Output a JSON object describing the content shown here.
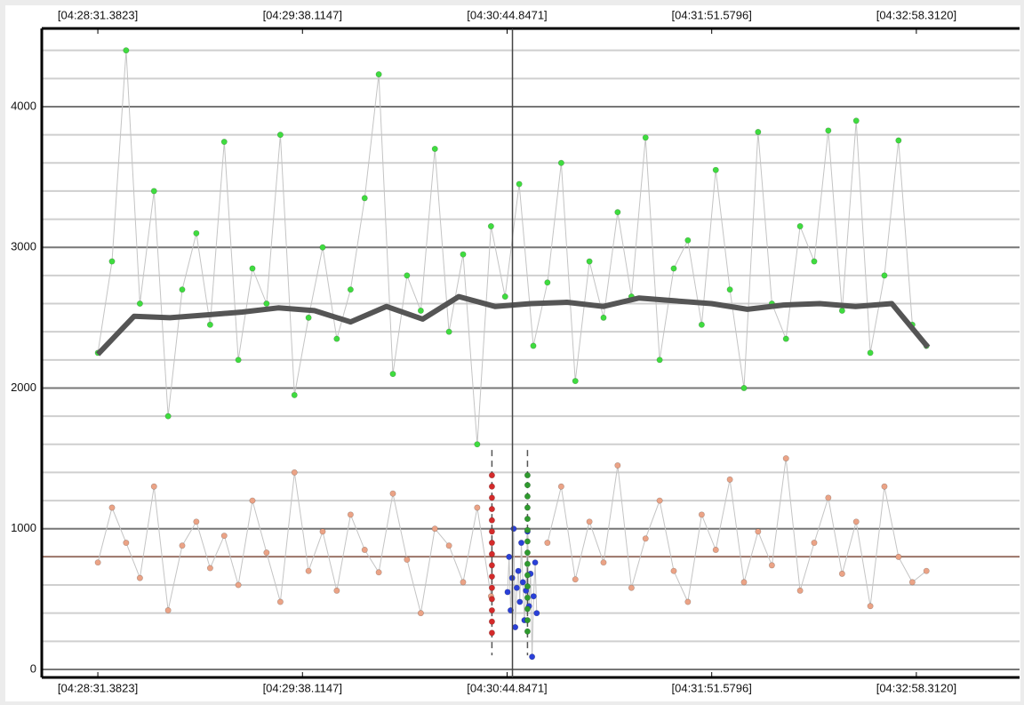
{
  "chart_data": {
    "type": "scatter",
    "xlim": [
      16093.1,
      16411.97
    ],
    "ylim": [
      -57,
      4556
    ],
    "xticks": [
      {
        "value": 16111.3823,
        "label": "[04:28:31.3823]"
      },
      {
        "value": 16178.1147,
        "label": "[04:29:38.1147]"
      },
      {
        "value": 16244.8471,
        "label": "[04:30:44.8471]"
      },
      {
        "value": 16311.5796,
        "label": "[04:31:51.5796]"
      },
      {
        "value": 16378.312,
        "label": "[04:32:58.3120]"
      }
    ],
    "yticks": [
      0,
      1000,
      2000,
      3000,
      4000
    ],
    "minor_yticks": [
      200,
      400,
      600,
      800,
      1200,
      1400,
      1600,
      1800,
      2200,
      2400,
      2600,
      2800,
      3200,
      3400,
      3600,
      3800,
      4200,
      4400
    ],
    "grid": true,
    "reference_line": 802,
    "cursor_x": 16246.6,
    "selection": {
      "start": 16239.9,
      "end": 16251.5
    },
    "series": [
      {
        "color": "#3fdc3f",
        "mode": "markers+line",
        "x": [
          16111.4,
          16116.0,
          16120.6,
          16125.1,
          16129.7,
          16134.3,
          16138.9,
          16143.5,
          16148.0,
          16152.6,
          16157.2,
          16161.8,
          16166.4,
          16170.9,
          16175.5,
          16180.1,
          16184.7,
          16189.3,
          16193.8,
          16198.4,
          16203.0,
          16207.6,
          16212.2,
          16216.7,
          16221.3,
          16225.9,
          16230.5,
          16235.1,
          16239.6,
          16244.2,
          16248.8,
          16253.4,
          16258.0,
          16262.5,
          16267.1,
          16271.7,
          16276.3,
          16280.9,
          16285.4,
          16290.0,
          16294.6,
          16299.2,
          16303.8,
          16308.3,
          16312.9,
          16317.5,
          16322.1,
          16326.7,
          16331.2,
          16335.8,
          16340.4,
          16345.0,
          16349.6,
          16354.1,
          16358.7,
          16363.3,
          16367.9,
          16372.5,
          16377.0,
          16381.6
        ],
        "values": [
          2250,
          2900,
          4400,
          2600,
          3400,
          1800,
          2700,
          3100,
          2450,
          3750,
          2200,
          2850,
          2600,
          3800,
          1950,
          2500,
          3000,
          2350,
          2700,
          3350,
          4230,
          2100,
          2800,
          2550,
          3700,
          2400,
          2950,
          1600,
          3150,
          2650,
          3450,
          2300,
          2750,
          3600,
          2050,
          2900,
          2500,
          3250,
          2650,
          3780,
          2200,
          2850,
          3050,
          2450,
          3550,
          2700,
          2000,
          3820,
          2600,
          2350,
          3150,
          2900,
          3830,
          2550,
          3900,
          2250,
          2800,
          3760,
          2450,
          2300
        ]
      },
      {
        "color": "#eba386",
        "mode": "markers+line",
        "x": [
          16111.4,
          16116.0,
          16120.6,
          16125.1,
          16129.7,
          16134.3,
          16138.9,
          16143.5,
          16148.0,
          16152.6,
          16157.2,
          16161.8,
          16166.4,
          16170.9,
          16175.5,
          16180.1,
          16184.7,
          16189.3,
          16193.8,
          16198.4,
          16203.0,
          16207.6,
          16212.2,
          16216.7,
          16221.3,
          16225.9,
          16230.5,
          16235.1,
          16239.6,
          16244.2,
          16248.8,
          16253.4,
          16258.0,
          16262.5,
          16267.1,
          16271.7,
          16276.3,
          16280.9,
          16285.4,
          16290.0,
          16294.6,
          16299.2,
          16303.8,
          16308.3,
          16312.9,
          16317.5,
          16322.1,
          16326.7,
          16331.2,
          16335.8,
          16340.4,
          16345.0,
          16349.6,
          16354.1,
          16358.7,
          16363.3,
          16367.9,
          16372.5,
          16377.0,
          16381.6
        ],
        "values": [
          760,
          1150,
          900,
          650,
          1300,
          420,
          880,
          1050,
          720,
          950,
          600,
          1200,
          830,
          480,
          1400,
          700,
          980,
          560,
          1100,
          850,
          690,
          1250,
          780,
          400,
          1000,
          880,
          620,
          1150,
          520,
          null,
          null,
          null,
          900,
          1300,
          640,
          1050,
          760,
          1450,
          580,
          930,
          1200,
          700,
          480,
          1100,
          850,
          1350,
          620,
          980,
          740,
          1500,
          560,
          900,
          1220,
          680,
          1050,
          450,
          1300,
          800,
          620,
          700
        ]
      },
      {
        "color": "#2a40d8",
        "mode": "markers+line",
        "x": [
          16245.0,
          16245.5,
          16246.0,
          16246.5,
          16247.0,
          16247.5,
          16248.0,
          16248.5,
          16249.0,
          16249.5,
          16250.0,
          16250.5,
          16251.0,
          16251.5,
          16252.0,
          16252.5,
          16253.0,
          16253.5,
          16254.0,
          16254.5
        ],
        "values": [
          550,
          800,
          420,
          650,
          1000,
          300,
          580,
          700,
          480,
          900,
          620,
          350,
          560,
          980,
          450,
          680,
          90,
          520,
          760,
          400
        ]
      },
      {
        "color": "#d42a2a",
        "mode": "markers",
        "x": [
          16239.9,
          16239.9,
          16239.9,
          16239.9,
          16239.9,
          16239.9,
          16239.9,
          16239.9,
          16239.9,
          16239.9,
          16239.9,
          16239.9,
          16239.9,
          16239.9,
          16239.9
        ],
        "values": [
          260,
          340,
          420,
          500,
          580,
          660,
          740,
          820,
          900,
          980,
          1060,
          1140,
          1220,
          1300,
          1380
        ]
      },
      {
        "color": "#2e9a2e",
        "mode": "markers",
        "x": [
          16251.5,
          16251.5,
          16251.5,
          16251.5,
          16251.5,
          16251.5,
          16251.5,
          16251.5,
          16251.5,
          16251.5,
          16251.5,
          16251.5,
          16251.5,
          16251.5,
          16251.5
        ],
        "values": [
          270,
          350,
          430,
          510,
          590,
          670,
          750,
          830,
          910,
          990,
          1070,
          1150,
          1230,
          1310,
          1380
        ]
      },
      {
        "color": "#555555",
        "mode": "line",
        "x": [
          16111.4,
          16123.2,
          16134.9,
          16146.7,
          16158.5,
          16170.2,
          16182.0,
          16193.8,
          16205.5,
          16217.3,
          16229.1,
          16240.9,
          16252.6,
          16264.4,
          16276.2,
          16287.9,
          16299.7,
          16311.5,
          16323.2,
          16335.0,
          16346.8,
          16358.5,
          16370.3,
          16382.1
        ],
        "values": [
          2240,
          2510,
          2500,
          2520,
          2540,
          2570,
          2550,
          2470,
          2580,
          2490,
          2650,
          2580,
          2600,
          2610,
          2580,
          2640,
          2620,
          2600,
          2560,
          2590,
          2600,
          2580,
          2600,
          2290
        ]
      }
    ]
  }
}
